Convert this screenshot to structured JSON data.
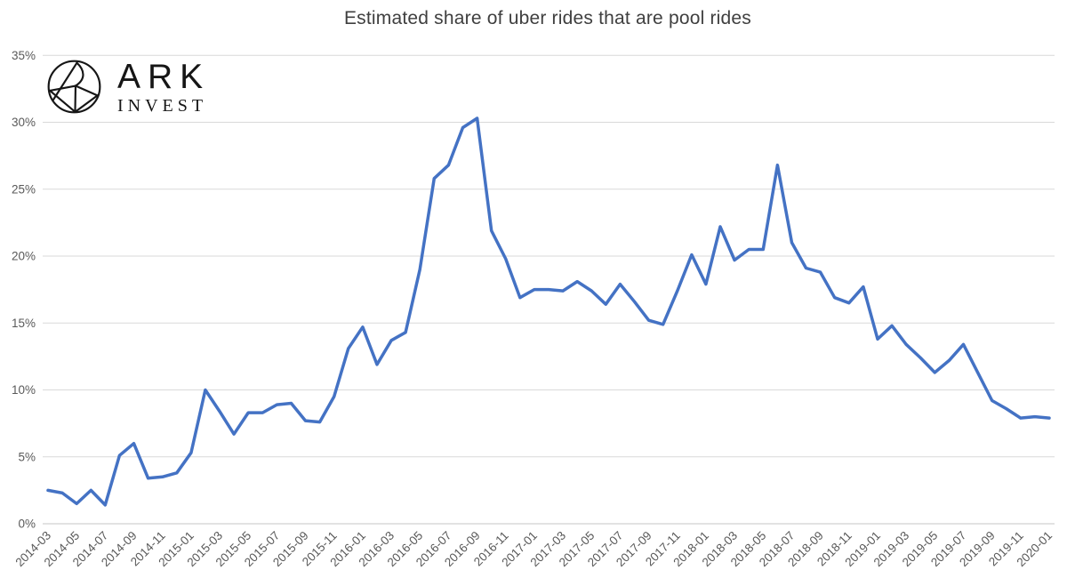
{
  "logo": {
    "word": "ARK",
    "sub": "INVEST"
  },
  "chart_data": {
    "type": "line",
    "title": "Estimated share of uber rides that are pool rides",
    "series_name": "Estimated share of uber rides that are pool rides",
    "unit": "%",
    "categories": [
      "2014-03",
      "2014-04",
      "2014-05",
      "2014-06",
      "2014-07",
      "2014-08",
      "2014-09",
      "2014-10",
      "2014-11",
      "2014-12",
      "2015-01",
      "2015-02",
      "2015-03",
      "2015-04",
      "2015-05",
      "2015-06",
      "2015-07",
      "2015-08",
      "2015-09",
      "2015-10",
      "2015-11",
      "2015-12",
      "2016-01",
      "2016-02",
      "2016-03",
      "2016-04",
      "2016-05",
      "2016-06",
      "2016-07",
      "2016-08",
      "2016-09",
      "2016-10",
      "2016-11",
      "2016-12",
      "2017-01",
      "2017-02",
      "2017-03",
      "2017-04",
      "2017-05",
      "2017-06",
      "2017-07",
      "2017-08",
      "2017-09",
      "2017-10",
      "2017-11",
      "2017-12",
      "2018-01",
      "2018-02",
      "2018-03",
      "2018-04",
      "2018-05",
      "2018-06",
      "2018-07",
      "2018-08",
      "2018-09",
      "2018-10",
      "2018-11",
      "2018-12",
      "2019-01",
      "2019-02",
      "2019-03",
      "2019-04",
      "2019-05",
      "2019-06",
      "2019-07",
      "2019-08",
      "2019-09",
      "2019-10",
      "2019-11",
      "2019-12",
      "2020-01"
    ],
    "values": [
      2.5,
      2.3,
      1.5,
      2.5,
      1.4,
      5.1,
      6.0,
      3.4,
      3.5,
      3.8,
      5.3,
      10.0,
      8.4,
      6.7,
      8.3,
      8.3,
      8.9,
      9.0,
      7.7,
      7.6,
      9.5,
      13.1,
      14.7,
      11.9,
      13.7,
      14.3,
      19.0,
      25.8,
      26.8,
      29.6,
      30.3,
      21.9,
      19.8,
      16.9,
      17.5,
      17.5,
      17.4,
      18.1,
      17.4,
      16.4,
      17.9,
      16.6,
      15.2,
      14.9,
      17.4,
      20.1,
      17.9,
      22.2,
      19.7,
      20.5,
      20.5,
      26.8,
      21.0,
      19.1,
      18.8,
      16.9,
      16.5,
      17.7,
      13.8,
      14.8,
      13.4,
      12.4,
      11.3,
      12.2,
      13.4,
      11.3,
      9.2,
      8.6,
      7.9,
      8.0,
      7.9
    ],
    "y_ticks": [
      0,
      5,
      10,
      15,
      20,
      25,
      30,
      35
    ],
    "ylim": [
      0,
      35
    ],
    "x_tick_step": 2,
    "grid": "horizontal",
    "legend": "none",
    "line_color": "#4472C4",
    "gridline_color": "#D9D9D9",
    "baseline_color": "#C6C6C6",
    "axis_label_color": "#595959",
    "title_color": "#3f3f3f"
  }
}
